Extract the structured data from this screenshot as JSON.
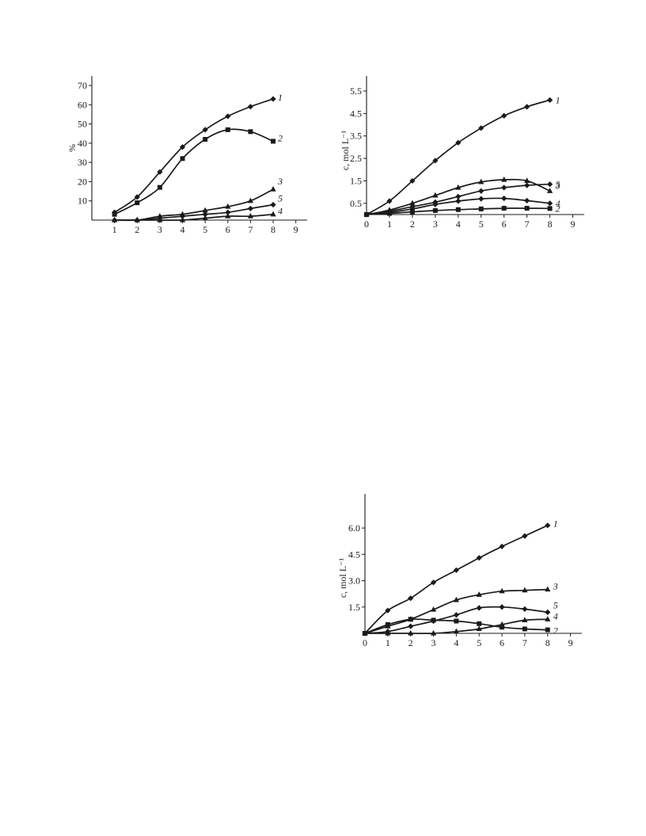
{
  "chart_data": [
    {
      "type": "line",
      "title": "",
      "xlabel": "",
      "ylabel": "%",
      "xlim": [
        0,
        9.5
      ],
      "ylim": [
        0,
        75
      ],
      "x_ticks": [
        "1",
        "2",
        "3",
        "4",
        "5",
        "6",
        "7",
        "8",
        "9"
      ],
      "y_ticks": [
        "10",
        "20",
        "30",
        "40",
        "50",
        "60",
        "70"
      ],
      "grid": false,
      "series": [
        {
          "name": "1",
          "marker": "diamond",
          "x": [
            1,
            2,
            3,
            4,
            5,
            6,
            7,
            8
          ],
          "values": [
            4,
            12,
            25,
            38,
            47,
            54,
            59,
            63
          ]
        },
        {
          "name": "2",
          "marker": "square",
          "x": [
            1,
            2,
            3,
            4,
            5,
            6,
            7,
            8
          ],
          "values": [
            3,
            9,
            17,
            32,
            42,
            47,
            46,
            41
          ]
        },
        {
          "name": "3",
          "marker": "triangle",
          "x": [
            1,
            2,
            3,
            4,
            5,
            6,
            7,
            8
          ],
          "values": [
            0,
            0,
            2,
            3,
            5,
            7,
            10,
            16
          ]
        },
        {
          "name": "5",
          "marker": "diamond",
          "x": [
            1,
            2,
            3,
            4,
            5,
            6,
            7,
            8
          ],
          "values": [
            0,
            0,
            1,
            2,
            3,
            4,
            6,
            8
          ]
        },
        {
          "name": "4",
          "marker": "triangle",
          "x": [
            1,
            2,
            3,
            4,
            5,
            6,
            7,
            8
          ],
          "values": [
            0,
            0,
            0,
            0,
            1,
            2,
            2,
            3
          ]
        }
      ]
    },
    {
      "type": "line",
      "title": "",
      "xlabel": "",
      "ylabel": "c, mol L⁻¹",
      "xlim": [
        0,
        9.5
      ],
      "ylim": [
        0,
        6.0
      ],
      "x_ticks": [
        "0",
        "1",
        "2",
        "3",
        "4",
        "5",
        "6",
        "7",
        "8",
        "9"
      ],
      "y_ticks": [
        "0.5",
        "1.5",
        "2.5",
        "3.5",
        "4.5",
        "5.5"
      ],
      "grid": false,
      "series": [
        {
          "name": "1",
          "marker": "diamond",
          "x": [
            0,
            1,
            2,
            3,
            4,
            5,
            6,
            7,
            8
          ],
          "values": [
            0,
            0.6,
            1.5,
            2.4,
            3.2,
            3.85,
            4.4,
            4.8,
            5.1
          ]
        },
        {
          "name": "5",
          "marker": "triangle",
          "x": [
            0,
            1,
            2,
            3,
            4,
            5,
            6,
            7,
            8
          ],
          "values": [
            0,
            0.2,
            0.5,
            0.85,
            1.2,
            1.45,
            1.55,
            1.5,
            1.05
          ]
        },
        {
          "name": "3",
          "marker": "diamond",
          "x": [
            0,
            1,
            2,
            3,
            4,
            5,
            6,
            7,
            8
          ],
          "values": [
            0,
            0.15,
            0.35,
            0.55,
            0.8,
            1.05,
            1.2,
            1.3,
            1.35
          ]
        },
        {
          "name": "4",
          "marker": "diamond",
          "x": [
            0,
            1,
            2,
            3,
            4,
            5,
            6,
            7,
            8
          ],
          "values": [
            0,
            0.1,
            0.25,
            0.45,
            0.6,
            0.7,
            0.72,
            0.62,
            0.5
          ]
        },
        {
          "name": "2",
          "marker": "square",
          "x": [
            0,
            1,
            2,
            3,
            4,
            5,
            6,
            7,
            8
          ],
          "values": [
            0,
            0.05,
            0.12,
            0.18,
            0.22,
            0.25,
            0.28,
            0.28,
            0.27
          ]
        }
      ]
    },
    {
      "type": "line",
      "title": "",
      "xlabel": "",
      "ylabel": "c, mol L⁻¹",
      "xlim": [
        0,
        9.5
      ],
      "ylim": [
        0,
        8.5
      ],
      "x_ticks": [
        "0",
        "1",
        "2",
        "3",
        "4",
        "5",
        "6",
        "7",
        "8",
        "9"
      ],
      "y_ticks": [
        "1.5",
        "3.0",
        "4.5",
        "6.0"
      ],
      "grid": false,
      "series": [
        {
          "name": "1",
          "marker": "diamond",
          "x": [
            0,
            1,
            2,
            3,
            4,
            5,
            6,
            7,
            8
          ],
          "values": [
            0,
            1.3,
            2.0,
            2.9,
            3.6,
            4.3,
            4.95,
            5.55,
            6.15
          ]
        },
        {
          "name": "3",
          "marker": "triangle",
          "x": [
            0,
            1,
            2,
            3,
            4,
            5,
            6,
            7,
            8
          ],
          "values": [
            0,
            0.4,
            0.8,
            1.35,
            1.9,
            2.2,
            2.4,
            2.45,
            2.5
          ]
        },
        {
          "name": "5",
          "marker": "diamond",
          "x": [
            0,
            1,
            2,
            3,
            4,
            5,
            6,
            7,
            8
          ],
          "values": [
            0,
            0.1,
            0.4,
            0.7,
            1.05,
            1.45,
            1.5,
            1.38,
            1.2
          ]
        },
        {
          "name": "4",
          "marker": "triangle",
          "x": [
            0,
            1,
            2,
            3,
            4,
            5,
            6,
            7,
            8
          ],
          "values": [
            0,
            0,
            0,
            0,
            0.1,
            0.25,
            0.5,
            0.75,
            0.8
          ]
        },
        {
          "name": "2",
          "marker": "square",
          "x": [
            0,
            1,
            2,
            3,
            4,
            5,
            6,
            7,
            8
          ],
          "values": [
            0,
            0.5,
            0.8,
            0.75,
            0.7,
            0.55,
            0.35,
            0.25,
            0.2
          ]
        }
      ]
    }
  ]
}
